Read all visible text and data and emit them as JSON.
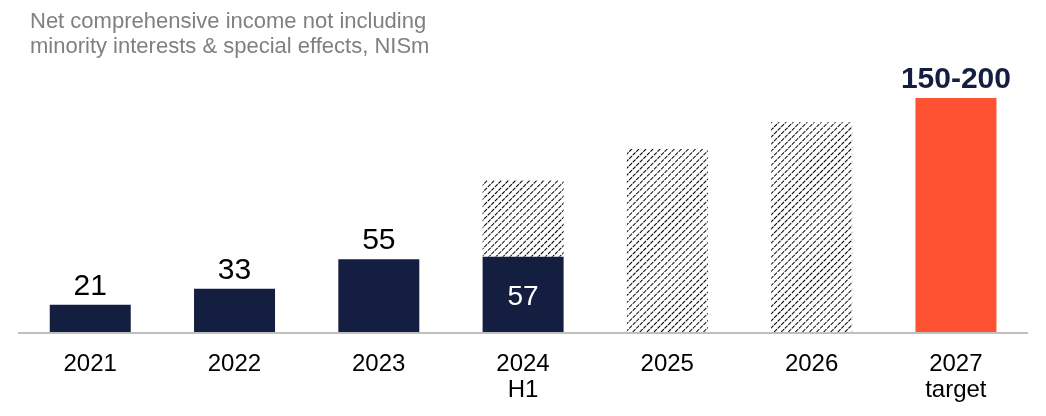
{
  "chart_data": {
    "type": "bar",
    "title": "Net comprehensive income not including minority interests & special effects, NISm",
    "categories": [
      "2021",
      "2022",
      "2023",
      "2024 H1",
      "2025",
      "2026",
      "2027 target"
    ],
    "stacked": true,
    "legend": false,
    "series": [
      {
        "color": "#141e40",
        "values": [
          21,
          33,
          55,
          57,
          null,
          null,
          null
        ],
        "value_labels": [
          "21",
          "33",
          "55",
          "57",
          null,
          null,
          null
        ]
      },
      {
        "color": "#000000",
        "values": [
          null,
          null,
          null,
          57,
          137,
          157,
          null
        ]
      },
      {
        "color": "#ff5233",
        "values": [
          null,
          null,
          null,
          null,
          null,
          null,
          175
        ],
        "value_labels": [
          null,
          null,
          null,
          null,
          null,
          null,
          "150-200"
        ]
      }
    ]
  }
}
